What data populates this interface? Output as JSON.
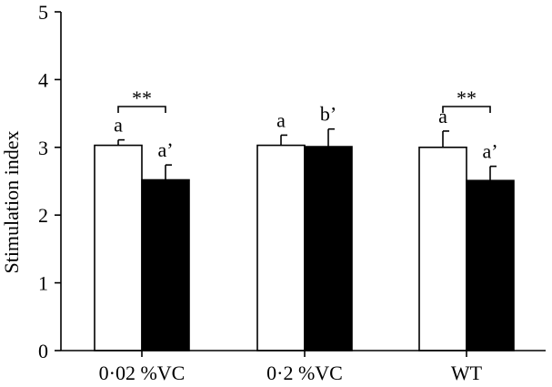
{
  "chart_data": {
    "type": "bar",
    "ylabel": "Stimulation index",
    "xlabel": "",
    "ylim": [
      0,
      5
    ],
    "yticks": [
      0,
      1,
      2,
      3,
      4,
      5
    ],
    "grid": false,
    "categories": [
      "0·02 %VC",
      "0·2 %VC",
      "WT"
    ],
    "series": [
      {
        "fill": "#ffffff",
        "values": [
          3.03,
          3.03,
          3.0
        ],
        "errors": [
          0.08,
          0.15,
          0.24
        ],
        "labels": [
          "a",
          "a",
          "a"
        ]
      },
      {
        "fill": "#000000",
        "values": [
          2.52,
          3.01,
          2.51
        ],
        "errors": [
          0.22,
          0.26,
          0.21
        ],
        "labels": [
          "a’",
          "b’",
          "a’"
        ]
      }
    ],
    "significance": [
      {
        "category_index": 0,
        "label": "**"
      },
      {
        "category_index": 2,
        "label": "**"
      }
    ]
  }
}
